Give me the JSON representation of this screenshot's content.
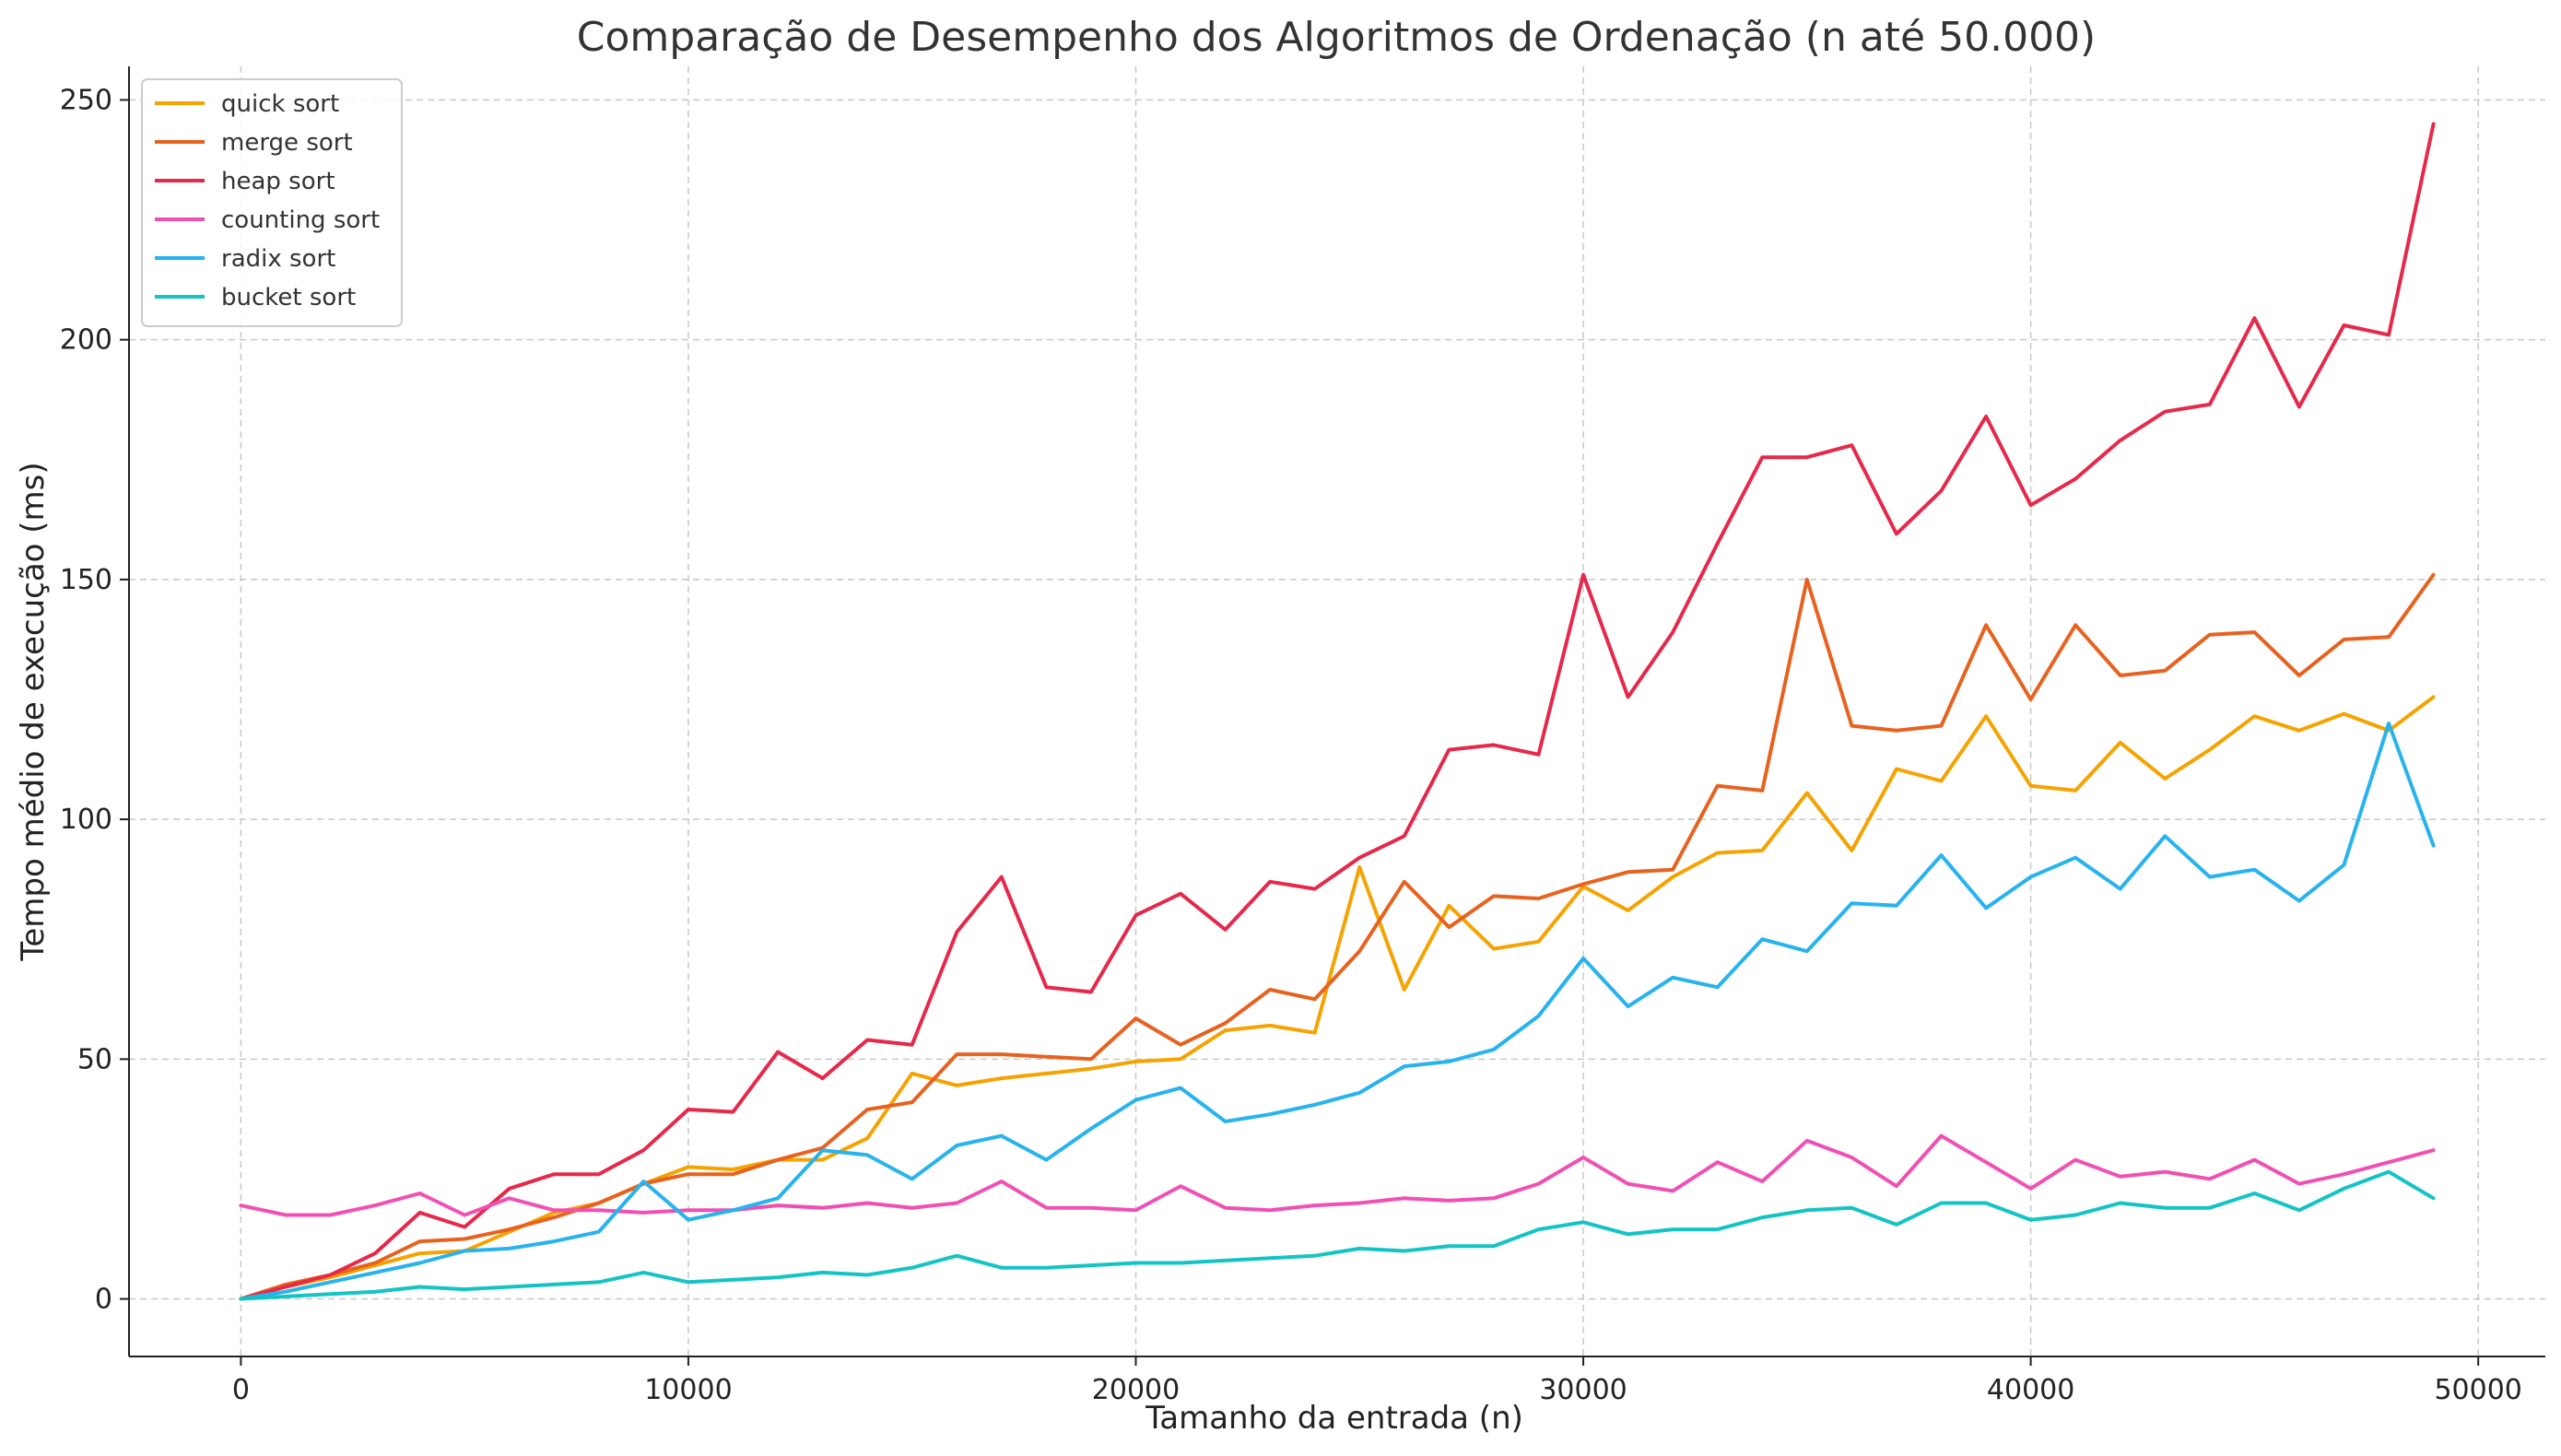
{
  "chart_data": {
    "type": "line",
    "title": "Comparação de Desempenho dos Algoritmos de Ordenação (n até 50.000)",
    "xlabel": "Tamanho da entrada (n)",
    "ylabel": "Tempo médio de execução (ms)",
    "xlim": [
      -2500,
      51500
    ],
    "ylim": [
      -12,
      257
    ],
    "xticks": [
      0,
      10000,
      20000,
      30000,
      40000,
      50000
    ],
    "xtick_labels": [
      "0",
      "10000",
      "20000",
      "30000",
      "40000",
      "50000"
    ],
    "yticks": [
      0,
      50,
      100,
      150,
      200,
      250
    ],
    "ytick_labels": [
      "0",
      "50",
      "100",
      "150",
      "200",
      "250"
    ],
    "grid": true,
    "legend_position": "top-left",
    "x": [
      0,
      1000,
      2000,
      3000,
      4000,
      5000,
      6000,
      7000,
      8000,
      9000,
      10000,
      11000,
      12000,
      13000,
      14000,
      15000,
      16000,
      17000,
      18000,
      19000,
      20000,
      21000,
      22000,
      23000,
      24000,
      25000,
      26000,
      27000,
      28000,
      29000,
      30000,
      31000,
      32000,
      33000,
      34000,
      35000,
      36000,
      37000,
      38000,
      39000,
      40000,
      41000,
      42000,
      43000,
      44000,
      45000,
      46000,
      47000,
      48000,
      49000
    ],
    "series": [
      {
        "name": "quick sort",
        "color": "#F5A300",
        "values": [
          0,
          2.5,
          4.5,
          7,
          9.5,
          10,
          14,
          18,
          20,
          24,
          27.5,
          27,
          29,
          29,
          33.5,
          47,
          44.5,
          46,
          47,
          48,
          49.5,
          50,
          56,
          57,
          55.5,
          90,
          64.5,
          82,
          73,
          74.5,
          86,
          81,
          88,
          93,
          93.5,
          105.5,
          93.5,
          110.5,
          108,
          121.5,
          107,
          106,
          116,
          108.5,
          114.5,
          121.5,
          118.5,
          122,
          118.5,
          125.5
        ]
      },
      {
        "name": "merge sort",
        "color": "#E8621F",
        "values": [
          0,
          3,
          5,
          7.5,
          12,
          12.5,
          14.5,
          17,
          20,
          24,
          26,
          26,
          29,
          31.5,
          39.5,
          41,
          51,
          51,
          50.5,
          50,
          58.5,
          53,
          57.5,
          64.5,
          62.5,
          72.5,
          87,
          77.5,
          84,
          83.5,
          86.5,
          89,
          89.5,
          107,
          106,
          150,
          119.5,
          118.5,
          119.5,
          140.5,
          125,
          140.5,
          130,
          131,
          138.5,
          139,
          130,
          137.5,
          138,
          151
        ]
      },
      {
        "name": "heap sort",
        "color": "#E6294B",
        "values": [
          0,
          2.5,
          5,
          9.5,
          18,
          15,
          23,
          26,
          26,
          31,
          39.5,
          39,
          51.5,
          46,
          54,
          53,
          76.5,
          88,
          65,
          64,
          80,
          84.5,
          77,
          87,
          85.5,
          92,
          96.5,
          114.5,
          115.5,
          113.5,
          151,
          125.5,
          139,
          157.5,
          175.5,
          175.5,
          178,
          159.5,
          168.5,
          184,
          165.5,
          171,
          179,
          185,
          186.5,
          204.5,
          186,
          203,
          201,
          245
        ]
      },
      {
        "name": "counting sort",
        "color": "#F050B4",
        "values": [
          19.5,
          17.5,
          17.5,
          19.5,
          22,
          17.5,
          21,
          18.5,
          18.5,
          18,
          18.5,
          18.5,
          19.5,
          19,
          20,
          19,
          20,
          24.5,
          19,
          19,
          18.5,
          23.5,
          19,
          18.5,
          19.5,
          20,
          21,
          20.5,
          21,
          24,
          29.5,
          24,
          22.5,
          28.5,
          24.5,
          33,
          29.5,
          23.5,
          34,
          28.5,
          23,
          29,
          25.5,
          26.5,
          25,
          29,
          24,
          26,
          28.5,
          31
        ]
      },
      {
        "name": "radix sort",
        "color": "#27B3EE",
        "values": [
          0,
          1.5,
          3.5,
          5.5,
          7.5,
          10,
          10.5,
          12,
          14,
          24.5,
          16.5,
          18.5,
          21,
          31,
          30,
          25,
          32,
          34,
          29,
          35.5,
          41.5,
          44,
          37,
          38.5,
          40.5,
          43,
          48.5,
          49.5,
          52,
          59,
          71,
          61,
          67,
          65,
          75,
          72.5,
          82.5,
          82,
          92.5,
          81.5,
          88,
          92,
          85.5,
          96.5,
          88,
          89.5,
          83,
          90.5,
          120,
          94.5
        ]
      },
      {
        "name": "bucket sort",
        "color": "#14C4C4",
        "values": [
          0,
          0.5,
          1,
          1.5,
          2.5,
          2,
          2.5,
          3,
          3.5,
          5.5,
          3.5,
          4,
          4.5,
          5.5,
          5,
          6.5,
          9,
          6.5,
          6.5,
          7,
          7.5,
          7.5,
          8,
          8.5,
          9,
          10.5,
          10,
          11,
          11,
          14.5,
          16,
          13.5,
          14.5,
          14.5,
          17,
          18.5,
          19,
          15.5,
          20,
          20,
          16.5,
          17.5,
          20,
          19,
          19,
          22,
          18.5,
          23,
          26.5,
          21
        ]
      }
    ]
  }
}
